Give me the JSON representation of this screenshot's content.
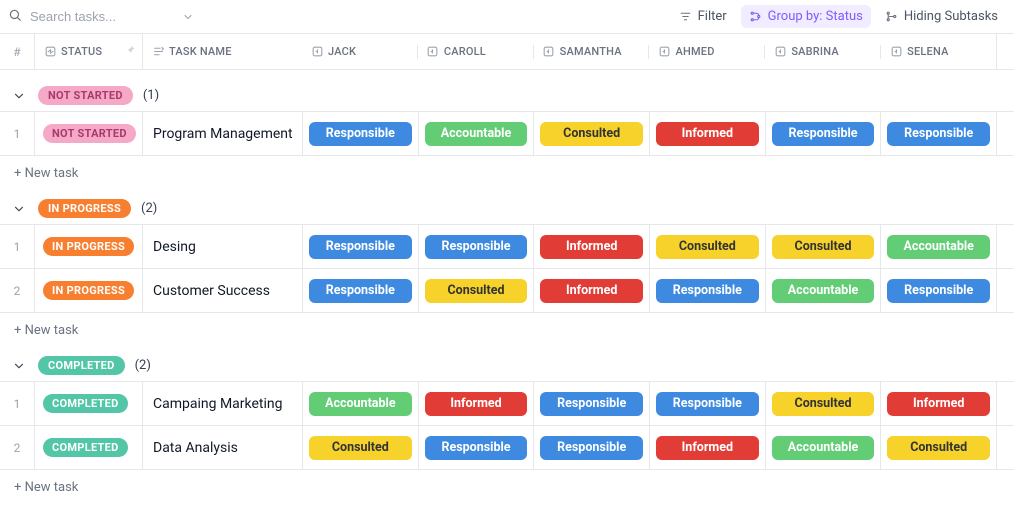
{
  "toolbar": {
    "search_placeholder": "Search tasks...",
    "filter_label": "Filter",
    "groupby_label": "Group by: Status",
    "hiding_label": "Hiding Subtasks"
  },
  "header": {
    "num_label": "#",
    "status_label": "STATUS",
    "name_label": "TASK NAME",
    "person_labels": [
      "JACK",
      "CAROLL",
      "SAMANTHA",
      "AHMED",
      "SABRINA",
      "SELENA"
    ]
  },
  "colors": {
    "status_not_started": {
      "bg": "#f6a8c7",
      "text": "#a83a6b"
    },
    "status_in_progress": {
      "bg": "#f77f2f",
      "text": "#ffffff"
    },
    "status_completed": {
      "bg": "#52c6a6",
      "text": "#ffffff"
    },
    "raci": {
      "Responsible": {
        "bg": "#3d8ae0",
        "text": "#ffffff"
      },
      "Accountable": {
        "bg": "#63cd76",
        "text": "#ffffff"
      },
      "Consulted": {
        "bg": "#f6d22b",
        "text": "#333333"
      },
      "Informed": {
        "bg": "#e23c36",
        "text": "#ffffff"
      }
    }
  },
  "new_task_label": "+ New task",
  "groups": [
    {
      "status_key": "status_not_started",
      "status_label": "NOT STARTED",
      "count": "(1)",
      "rows": [
        {
          "num": "1",
          "status_label": "NOT STARTED",
          "name": "Program Management",
          "cells": [
            "Responsible",
            "Accountable",
            "Consulted",
            "Informed",
            "Responsible",
            "Responsible"
          ]
        }
      ]
    },
    {
      "status_key": "status_in_progress",
      "status_label": "IN PROGRESS",
      "count": "(2)",
      "rows": [
        {
          "num": "1",
          "status_label": "IN PROGRESS",
          "name": "Desing",
          "cells": [
            "Responsible",
            "Responsible",
            "Informed",
            "Consulted",
            "Consulted",
            "Accountable"
          ]
        },
        {
          "num": "2",
          "status_label": "IN PROGRESS",
          "name": "Customer Success",
          "cells": [
            "Responsible",
            "Consulted",
            "Informed",
            "Responsible",
            "Accountable",
            "Responsible"
          ]
        }
      ]
    },
    {
      "status_key": "status_completed",
      "status_label": "COMPLETED",
      "count": "(2)",
      "rows": [
        {
          "num": "1",
          "status_label": "COMPLETED",
          "name": "Campaing Marketing",
          "cells": [
            "Accountable",
            "Informed",
            "Responsible",
            "Responsible",
            "Consulted",
            "Informed"
          ]
        },
        {
          "num": "2",
          "status_label": "COMPLETED",
          "name": "Data Analysis",
          "cells": [
            "Consulted",
            "Responsible",
            "Responsible",
            "Informed",
            "Accountable",
            "Consulted"
          ]
        }
      ]
    }
  ]
}
